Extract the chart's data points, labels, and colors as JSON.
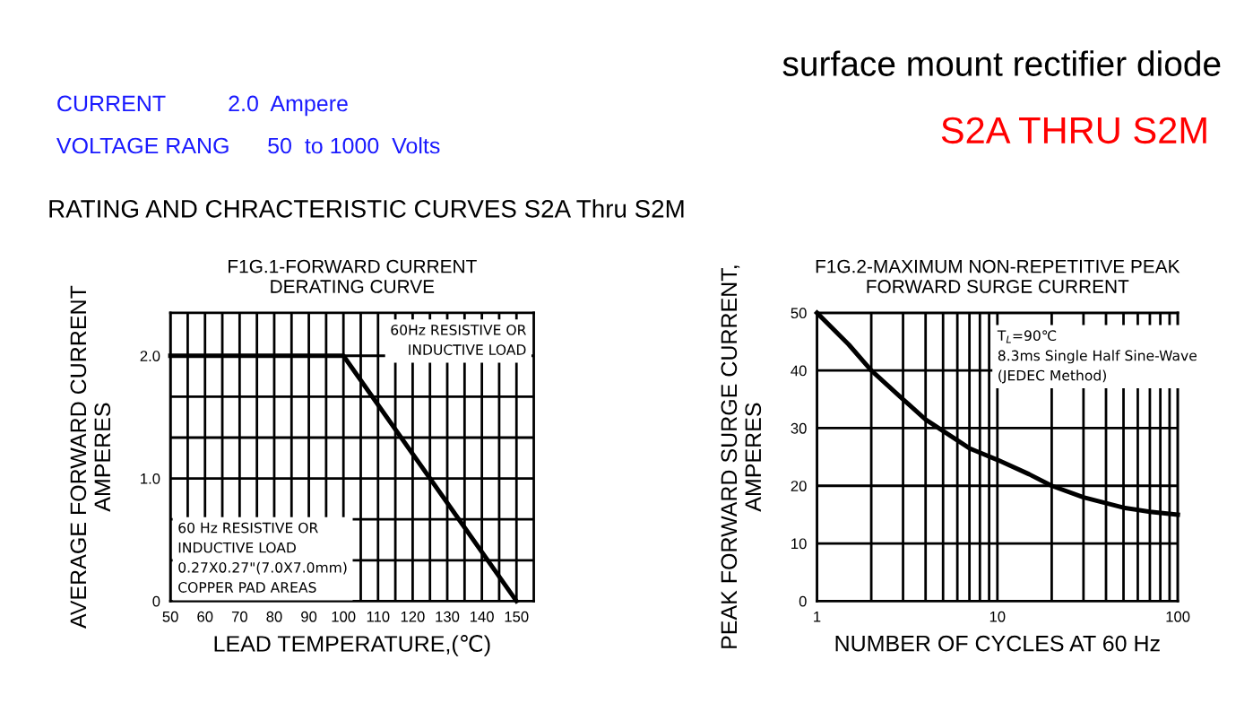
{
  "chart_data": [
    {
      "type": "other",
      "annotations": [
        "surface mount rectifier diode",
        "CURRENT          2.0  Ampere",
        "VOLTAGE RANG      50  to 1000  Volts",
        "S2A THRU S2M",
        "RATING AND CHRACTERISTIC CURVES S2A Thru S2M"
      ]
    },
    {
      "type": "line",
      "title": "F1G.1-FORWARD CURRENT\nDERATING CURVE",
      "xlabel": "LEAD TEMPERATURE,(℃)",
      "ylabel": "AVERAGE FORWARD CURRENT\nAMPERES",
      "x": [
        50,
        100,
        150
      ],
      "series": [
        {
          "color": "#000000",
          "values": [
            2.0,
            2.0,
            0
          ]
        }
      ],
      "xlim": [
        50,
        155
      ],
      "ylim": [
        0,
        2.35
      ],
      "xticks": [
        50,
        {
          "value": 55,
          "label": null
        },
        60,
        {
          "value": 65,
          "label": null
        },
        70,
        {
          "value": 75,
          "label": null
        },
        80,
        {
          "value": 85,
          "label": null
        },
        90,
        {
          "value": 95,
          "label": null
        },
        100,
        {
          "value": 105,
          "label": null
        },
        110,
        {
          "value": 115,
          "label": null
        },
        120,
        {
          "value": 125,
          "label": null
        },
        130,
        {
          "value": 135,
          "label": null
        },
        140,
        {
          "value": 145,
          "label": null
        },
        150
      ],
      "yticks": [
        {
          "value": 0,
          "label": "0"
        },
        {
          "value": 0.333,
          "label": null
        },
        {
          "value": 0.667,
          "label": null
        },
        {
          "value": 1.0,
          "label": "1.0"
        },
        {
          "value": 1.333,
          "label": null
        },
        {
          "value": 1.667,
          "label": null
        },
        {
          "value": 2.0,
          "label": "2.0"
        }
      ],
      "grid": true,
      "line_style": "solid",
      "marker": "none",
      "annotations": [
        "60Hz RESISTIVE OR\nINDUCTIVE LOAD",
        "60 Hz RESISTIVE OR\nINDUCTIVE LOAD\n0.27X0.27\"(7.0X7.0mm)\nCOPPER PAD AREAS"
      ]
    },
    {
      "type": "line",
      "title": "F1G.2-MAXIMUM NON-REPETITIVE PEAK\nFORWARD SURGE CURRENT",
      "xlabel": "NUMBER OF CYCLES AT 60 Hz",
      "ylabel": "PEAK FORWARD SURGE CURRENT,\nAMPERES",
      "x": [
        1,
        1.5,
        2,
        3,
        4,
        5,
        7,
        10,
        15,
        20,
        30,
        50,
        70,
        100
      ],
      "series": [
        {
          "color": "#000000",
          "values": [
            50,
            44.5,
            40,
            35,
            31.5,
            29.5,
            26.5,
            24.5,
            22,
            20,
            18,
            16.2,
            15.5,
            15
          ]
        }
      ],
      "log": "x",
      "xlim": [
        1,
        100
      ],
      "ylim": [
        0,
        50
      ],
      "xticks": [
        1,
        {
          "value": 2,
          "label": null
        },
        {
          "value": 3,
          "label": null
        },
        {
          "value": 4,
          "label": null
        },
        {
          "value": 5,
          "label": null
        },
        {
          "value": 6,
          "label": null
        },
        {
          "value": 7,
          "label": null
        },
        {
          "value": 8,
          "label": null
        },
        {
          "value": 9,
          "label": null
        },
        10,
        {
          "value": 20,
          "label": null
        },
        {
          "value": 30,
          "label": null
        },
        {
          "value": 40,
          "label": null
        },
        {
          "value": 50,
          "label": null
        },
        {
          "value": 60,
          "label": null
        },
        {
          "value": 70,
          "label": null
        },
        {
          "value": 80,
          "label": null
        },
        {
          "value": 90,
          "label": null
        },
        100
      ],
      "yticks": [
        0,
        10,
        20,
        30,
        40,
        50
      ],
      "grid": true,
      "line_style": "solid",
      "marker": "none",
      "annotations": [
        "T$_{L}$=90℃\n8.3ms Single Half Sine-Wave\n(JEDEC Method)"
      ]
    }
  ]
}
